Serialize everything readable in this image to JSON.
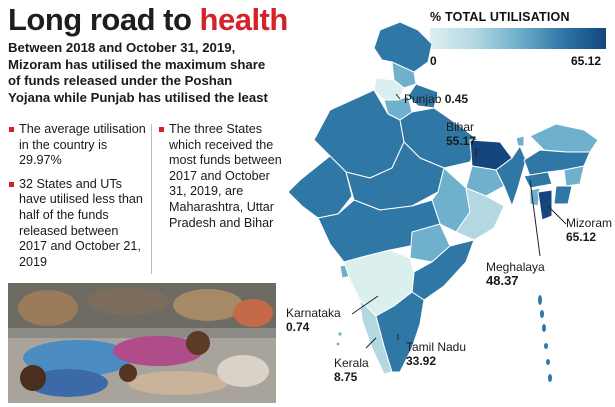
{
  "title_part1": "Long road to ",
  "title_part2": "health",
  "subtitle": "Between 2018 and October 31, 2019, Mizoram has utilised the maximum share of funds released under the Poshan Yojana while Punjab has utilised the least",
  "bullets_left": [
    "The average utilisation in the country is 29.97%",
    "32 States and UTs have utilised less than half of the funds released between 2017 and October 21, 2019"
  ],
  "bullets_right": [
    "The three States which received the most funds between 2017 and October 31, 2019, are Maharashtra, Uttar Pradesh and Bihar"
  ],
  "legend": {
    "title": "% TOTAL UTILISATION",
    "min": "0",
    "max": "65.12",
    "colors": [
      "#dcefef",
      "#b3d8e2",
      "#6fb0cc",
      "#2f78a6",
      "#14467d"
    ]
  },
  "map_labels": {
    "punjab": {
      "name": "Punjab",
      "value": "0.45"
    },
    "bihar": {
      "name": "Bihar",
      "value": "55.17"
    },
    "mizoram": {
      "name": "Mizoram",
      "value": "65.12"
    },
    "meghalaya": {
      "name": "Meghalaya",
      "value": "48.37"
    },
    "karnataka": {
      "name": "Karnataka",
      "value": "0.74"
    },
    "tamil_nadu": {
      "name": "Tamil Nadu",
      "value": "33.92"
    },
    "kerala": {
      "name": "Kerala",
      "value": "8.75"
    }
  },
  "colors": {
    "accent_red": "#d5212a",
    "state_border": "#ffffff"
  }
}
